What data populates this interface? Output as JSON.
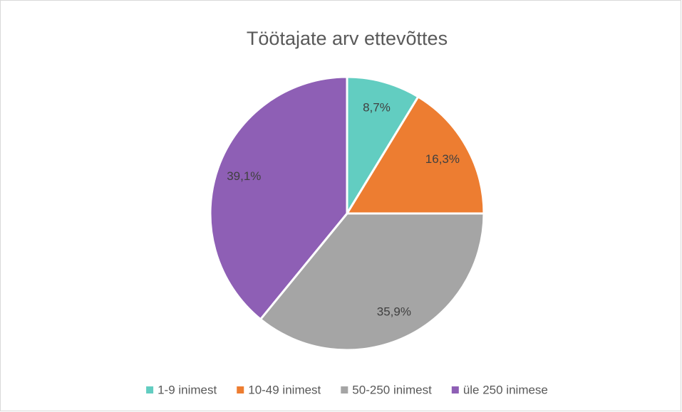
{
  "chart_data": {
    "type": "pie",
    "title": "Töötajate arv ettevõttes",
    "categories": [
      "1-9 inimest",
      "10-49 inimest",
      "50-250 inimest",
      "üle 250 inimese"
    ],
    "values": [
      8.7,
      16.3,
      35.9,
      39.1
    ],
    "value_labels": [
      "8,7%",
      "16,3%",
      "35,9%",
      "39,1%"
    ],
    "colors": [
      "#62cdc1",
      "#ed7d31",
      "#a5a5a5",
      "#8e5fb5"
    ],
    "legend": "bottom"
  }
}
